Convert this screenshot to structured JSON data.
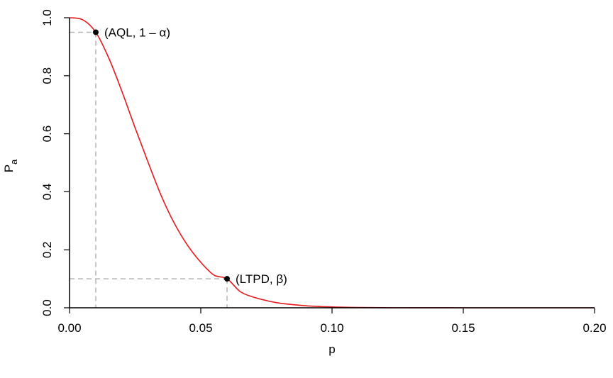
{
  "chart_data": {
    "type": "line",
    "title": "",
    "xlabel": "p",
    "ylabel": {
      "main": "P",
      "sub": "a"
    },
    "xlim": [
      0,
      0.2
    ],
    "ylim": [
      0,
      1
    ],
    "x_ticks": [
      0,
      0.05,
      0.1,
      0.15,
      0.2
    ],
    "x_tick_labels": [
      "0.00",
      "0.05",
      "0.10",
      "0.15",
      "0.20"
    ],
    "y_ticks": [
      0,
      0.2,
      0.4,
      0.6,
      0.8,
      1.0
    ],
    "y_tick_labels": [
      "0.0",
      "0.2",
      "0.4",
      "0.6",
      "0.8",
      "1.0"
    ],
    "grid": false,
    "series": [
      {
        "color": "#e41a1c",
        "x": [
          0,
          0.005,
          0.01,
          0.015,
          0.02,
          0.025,
          0.03,
          0.035,
          0.04,
          0.045,
          0.05,
          0.055,
          0.06,
          0.065,
          0.07,
          0.075,
          0.08,
          0.09,
          0.1,
          0.11,
          0.12,
          0.13,
          0.14,
          0.15,
          0.16,
          0.18,
          0.2
        ],
        "y": [
          1.0,
          0.993,
          0.95,
          0.86,
          0.745,
          0.62,
          0.5,
          0.385,
          0.29,
          0.215,
          0.157,
          0.113,
          0.1,
          0.056,
          0.037,
          0.025,
          0.016,
          0.007,
          0.003,
          0.0012,
          0.0005,
          0.0002,
          0.0001,
          0.0,
          0.0,
          0.0,
          0.0
        ]
      }
    ],
    "points": [
      {
        "x": 0.01,
        "y": 0.95,
        "label_parts": [
          "(AQL, 1 – ",
          "α",
          ")"
        ]
      },
      {
        "x": 0.06,
        "y": 0.1,
        "label_parts": [
          "(LTPD, ",
          "β",
          ")"
        ]
      }
    ],
    "reference_line_color": "#b3b3b3"
  }
}
